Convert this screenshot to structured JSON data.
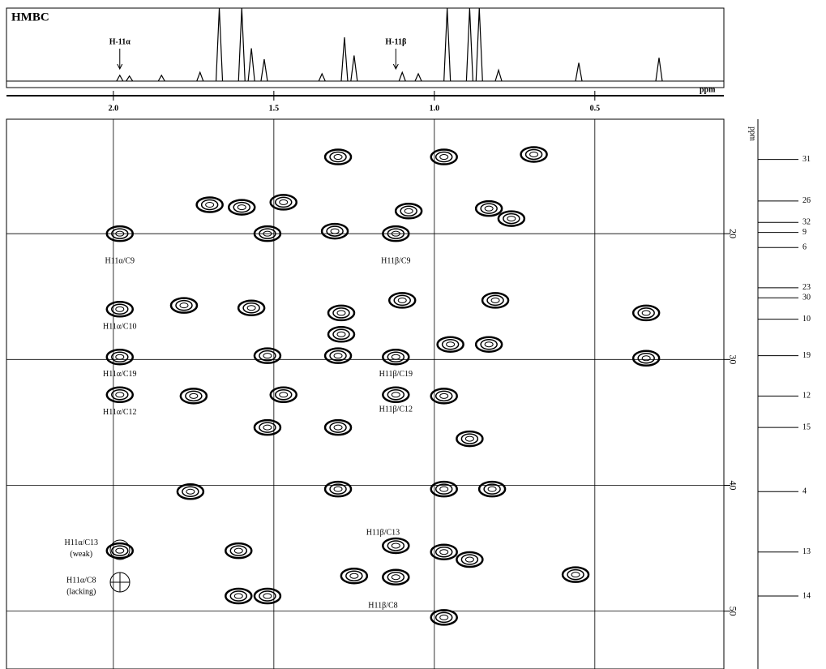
{
  "chart_data": {
    "type": "contour",
    "title": "HMBC",
    "x_label": "ppm",
    "y_label": "ppm",
    "xlim": [
      2.333,
      0.098
    ],
    "ylim": [
      10.9,
      54.6
    ],
    "xticks": [
      {
        "value": 2,
        "label": "2.0"
      },
      {
        "value": 1.5,
        "label": "1.5"
      },
      {
        "value": 1,
        "label": "1.0"
      },
      {
        "value": 0.5,
        "label": "0.5"
      }
    ],
    "yticks": [
      20,
      30,
      40,
      50
    ],
    "grid": true,
    "proton_spectrum": {
      "x": [
        1.98,
        1.95,
        1.85,
        1.73,
        1.67,
        1.6,
        1.57,
        1.53,
        1.35,
        1.28,
        1.25,
        1.1,
        1.05,
        0.96,
        0.89,
        0.86,
        0.8,
        0.55,
        0.3
      ],
      "y": [
        8,
        7,
        8,
        12,
        100,
        100,
        45,
        30,
        10,
        60,
        35,
        12,
        10,
        100,
        100,
        100,
        15,
        25,
        32
      ]
    },
    "proton_annotations": [
      {
        "text": "H-11α",
        "x": 1.98
      },
      {
        "text": "H-11β",
        "x": 1.12
      }
    ],
    "carbon_spectrum": {
      "labels": [
        "31",
        "26",
        "32",
        "9",
        "6",
        "23",
        "30",
        "10",
        "19",
        "12",
        "15",
        "4",
        "13",
        "14"
      ],
      "shifts": [
        14.1,
        17.4,
        19.1,
        19.9,
        21.1,
        24.3,
        25.1,
        26.8,
        29.7,
        32.9,
        35.4,
        40.5,
        45.3,
        48.8
      ]
    },
    "peaks": {
      "x": [
        1.3,
        0.97,
        0.69,
        1.7,
        1.6,
        1.47,
        1.52,
        1.31,
        1.08,
        0.83,
        0.76,
        1.78,
        1.57,
        1.29,
        1.1,
        0.81,
        0.34,
        1.29,
        1.52,
        1.3,
        0.95,
        0.83,
        0.34,
        1.75,
        1.47,
        0.97,
        1.3,
        1.52,
        0.89,
        1.76,
        1.3,
        0.97,
        0.82,
        1.61,
        0.97,
        0.89,
        0.56,
        1.52,
        1.61,
        1.25,
        0.97,
        1.98,
        1.98,
        1.98,
        1.98,
        1.12,
        1.12,
        1.12,
        1.12,
        1.12,
        1.98
      ],
      "y": [
        13.9,
        13.9,
        13.7,
        17.7,
        17.9,
        17.5,
        20,
        19.8,
        18.2,
        18,
        18.8,
        25.7,
        25.9,
        26.3,
        25.3,
        25.3,
        26.3,
        28,
        29.7,
        29.7,
        28.8,
        28.8,
        29.9,
        32.9,
        32.8,
        32.9,
        35.4,
        35.4,
        36.3,
        40.5,
        40.3,
        40.3,
        40.3,
        45.2,
        45.3,
        45.9,
        47.1,
        48.8,
        48.8,
        47.2,
        50.5,
        20,
        26,
        29.8,
        32.8,
        20,
        29.8,
        32.8,
        44.8,
        47.3,
        45.2
      ]
    },
    "annotations": [
      {
        "text": "H11α/C9",
        "x": 1.98,
        "y": 22.2
      },
      {
        "text": "H11β/C9",
        "x": 1.12,
        "y": 22.2
      },
      {
        "text": "H11α/C10",
        "x": 1.98,
        "y": 27.4
      },
      {
        "text": "H11α/C19",
        "x": 1.98,
        "y": 31.2
      },
      {
        "text": "H11β/C19",
        "x": 1.12,
        "y": 31.2
      },
      {
        "text": "H11α/C12",
        "x": 1.98,
        "y": 34.2
      },
      {
        "text": "H11β/C12",
        "x": 1.12,
        "y": 34.0
      },
      {
        "text": "H11α/C13",
        "x": 2.1,
        "y": 44.6
      },
      {
        "text": "(weak)",
        "x": 2.1,
        "y": 45.5
      },
      {
        "text": "H11β/C13",
        "x": 1.16,
        "y": 43.8
      },
      {
        "text": "H11α/C8",
        "x": 2.1,
        "y": 47.6
      },
      {
        "text": "(lacking)",
        "x": 2.1,
        "y": 48.5
      },
      {
        "text": "H11β/C8",
        "x": 1.16,
        "y": 49.6
      }
    ]
  }
}
